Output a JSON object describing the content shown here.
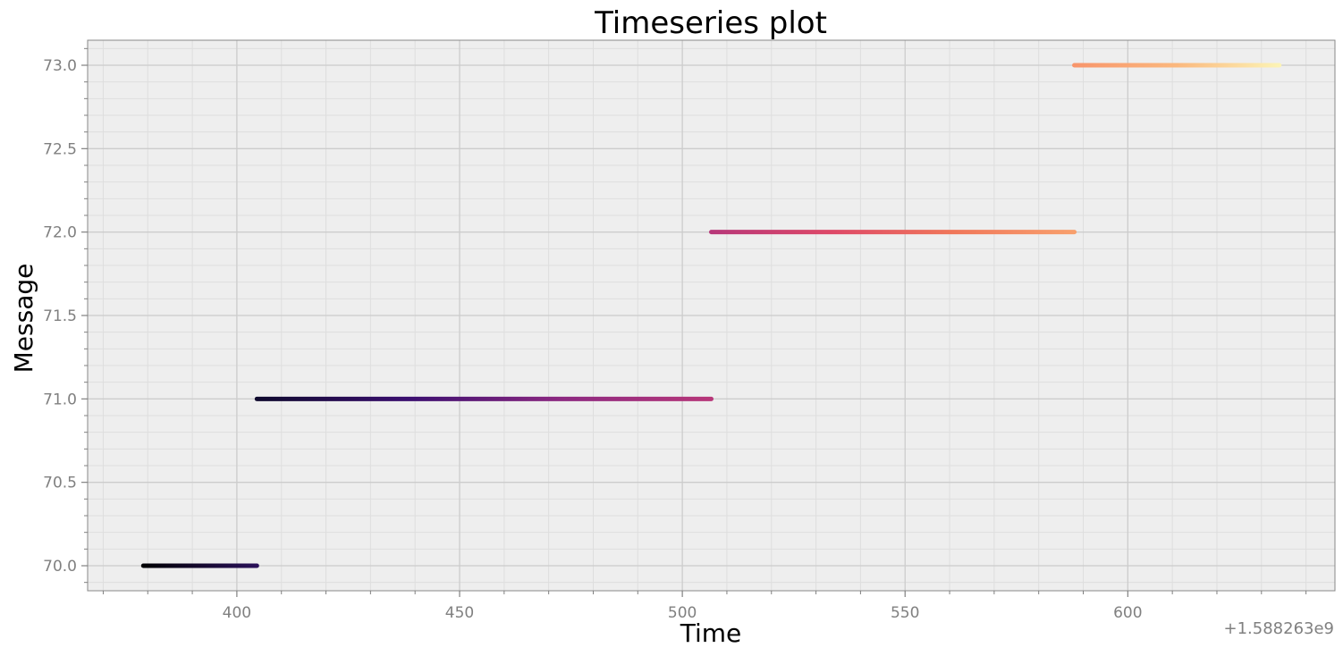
{
  "chart_data": {
    "type": "line",
    "title": "Timeseries plot",
    "xlabel": "Time",
    "ylabel": "Message",
    "x_offset_label": "+1.588263e9",
    "xlim": [
      366.5,
      646.5
    ],
    "ylim": [
      69.85,
      73.15
    ],
    "x_ticks": [
      400,
      450,
      500,
      550,
      600
    ],
    "x_tick_labels": [
      "400",
      "450",
      "500",
      "550",
      "600"
    ],
    "y_ticks": [
      70.0,
      70.5,
      71.0,
      71.5,
      72.0,
      72.5,
      73.0
    ],
    "y_tick_labels": [
      "70.0",
      "70.5",
      "71.0",
      "71.5",
      "72.0",
      "72.5",
      "73.0"
    ],
    "grid": true,
    "colormap": "magma",
    "series": [
      {
        "x": [
          379,
          404.5
        ],
        "y": 70.0,
        "colors": [
          "#000004",
          "#2a1159"
        ]
      },
      {
        "x": [
          404.5,
          506.5
        ],
        "y": 71.0,
        "colors": [
          "#0f0a2e",
          "#3b0f70",
          "#8c2981",
          "#b73779"
        ]
      },
      {
        "x": [
          506.5,
          588
        ],
        "y": 72.0,
        "colors": [
          "#b73779",
          "#de4968",
          "#f0775a",
          "#f8a06d"
        ]
      },
      {
        "x": [
          588,
          634
        ],
        "y": 73.0,
        "colors": [
          "#f8956b",
          "#fbb87e",
          "#fcf3b5"
        ]
      }
    ]
  },
  "style": {
    "plot_bg": "#eeeeee",
    "major_grid": "#cccccc",
    "minor_grid": "#dedede",
    "spine": "#888888",
    "tick_color": "#808080"
  }
}
